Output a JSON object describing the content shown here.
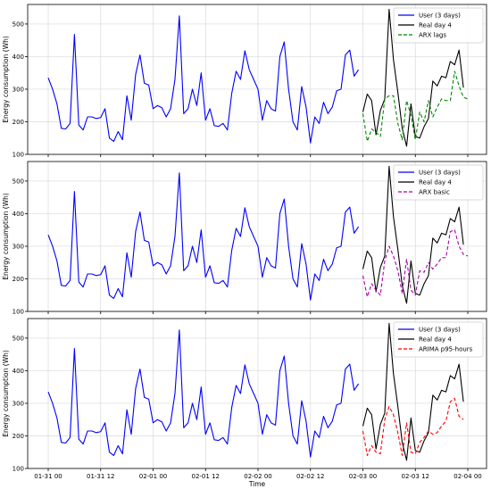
{
  "chart_data": [
    {
      "type": "line",
      "ylabel": "Energy consumption (Wh)",
      "ylim": [
        100,
        560
      ],
      "yticks": [
        100,
        200,
        300,
        400,
        500
      ],
      "xlim": [
        -6,
        75
      ],
      "grid": true,
      "legend": "top-right",
      "series": [
        {
          "name": "User (3 days)",
          "color": "#0000ff",
          "style": "solid",
          "x_start": 0,
          "values": [
            335,
            300,
            255,
            180,
            178,
            195,
            468,
            190,
            175,
            215,
            215,
            210,
            213,
            240,
            150,
            140,
            170,
            145,
            280,
            205,
            345,
            405,
            318,
            313,
            240,
            250,
            243,
            215,
            240,
            330,
            525,
            225,
            240,
            300,
            250,
            350,
            205,
            240,
            188,
            186,
            195,
            175,
            288,
            355,
            330,
            418,
            360,
            330,
            300,
            205,
            265,
            240,
            233,
            400,
            445,
            300,
            200,
            175,
            308,
            245,
            135,
            215,
            195,
            260,
            225,
            245,
            295,
            300,
            405,
            420,
            340,
            360
          ]
        },
        {
          "name": "Real day 4",
          "color": "#000000",
          "style": "solid",
          "x_start": 72,
          "values": [
            230,
            285,
            265,
            160,
            235,
            270,
            545,
            390,
            290,
            180,
            125,
            255,
            155,
            150,
            185,
            210,
            325,
            310,
            340,
            335,
            385,
            375,
            420,
            305
          ]
        },
        {
          "name": "ARX lags",
          "color": "#008800",
          "style": "dashed",
          "x_start": 72,
          "values": [
            225,
            140,
            178,
            168,
            155,
            270,
            280,
            280,
            195,
            145,
            265,
            220,
            145,
            230,
            200,
            265,
            215,
            245,
            270,
            265,
            265,
            355,
            310,
            275,
            270
          ]
        }
      ],
      "tick_labels": []
    },
    {
      "type": "line",
      "ylabel": "Energy consumption (Wh)",
      "ylim": [
        100,
        560
      ],
      "yticks": [
        100,
        200,
        300,
        400,
        500
      ],
      "xlim": [
        -6,
        75
      ],
      "grid": true,
      "legend": "top-right",
      "series": [
        {
          "name": "User (3 days)",
          "color": "#0000ff",
          "style": "solid",
          "x_start": 0,
          "values": [
            335,
            300,
            255,
            180,
            178,
            195,
            468,
            190,
            175,
            215,
            215,
            210,
            213,
            240,
            150,
            140,
            170,
            145,
            280,
            205,
            345,
            405,
            318,
            313,
            240,
            250,
            243,
            215,
            240,
            330,
            525,
            225,
            240,
            300,
            250,
            350,
            205,
            240,
            188,
            186,
            195,
            175,
            288,
            355,
            330,
            418,
            360,
            330,
            300,
            205,
            265,
            240,
            233,
            400,
            445,
            300,
            200,
            175,
            308,
            245,
            135,
            215,
            195,
            260,
            225,
            245,
            295,
            300,
            405,
            420,
            340,
            360
          ]
        },
        {
          "name": "Real day 4",
          "color": "#000000",
          "style": "solid",
          "x_start": 72,
          "values": [
            230,
            285,
            265,
            160,
            235,
            270,
            545,
            390,
            290,
            180,
            125,
            255,
            155,
            150,
            185,
            210,
            325,
            310,
            340,
            335,
            385,
            375,
            420,
            305
          ]
        },
        {
          "name": "ARX basic",
          "color": "#aa00aa",
          "style": "dashed",
          "x_start": 72,
          "values": [
            210,
            145,
            185,
            165,
            150,
            255,
            300,
            270,
            225,
            155,
            260,
            165,
            150,
            225,
            220,
            250,
            230,
            245,
            265,
            265,
            345,
            350,
            300,
            275,
            270
          ]
        }
      ],
      "tick_labels": []
    },
    {
      "type": "line",
      "ylabel": "Energy consumption (Wh)",
      "xlabel": "Time",
      "ylim": [
        100,
        560
      ],
      "yticks": [
        100,
        200,
        300,
        400,
        500
      ],
      "xlim": [
        -6,
        75
      ],
      "grid": true,
      "legend": "top-right",
      "series": [
        {
          "name": "User (3 days)",
          "color": "#0000ff",
          "style": "solid",
          "x_start": 0,
          "values": [
            335,
            300,
            255,
            180,
            178,
            195,
            468,
            190,
            175,
            215,
            215,
            210,
            213,
            240,
            150,
            140,
            170,
            145,
            280,
            205,
            345,
            405,
            318,
            313,
            240,
            250,
            243,
            215,
            240,
            330,
            525,
            225,
            240,
            300,
            250,
            350,
            205,
            240,
            188,
            186,
            195,
            175,
            288,
            355,
            330,
            418,
            360,
            330,
            300,
            205,
            265,
            240,
            233,
            400,
            445,
            300,
            200,
            175,
            308,
            245,
            135,
            215,
            195,
            260,
            225,
            245,
            295,
            300,
            405,
            420,
            340,
            360
          ]
        },
        {
          "name": "Real day 4",
          "color": "#000000",
          "style": "solid",
          "x_start": 72,
          "values": [
            230,
            285,
            265,
            160,
            235,
            270,
            545,
            390,
            290,
            180,
            125,
            255,
            155,
            150,
            185,
            210,
            325,
            310,
            340,
            335,
            385,
            375,
            420,
            305
          ]
        },
        {
          "name": "ARIMA p95-hours",
          "color": "#ff0000",
          "style": "dashed",
          "x_start": 72,
          "values": [
            215,
            140,
            170,
            150,
            145,
            250,
            290,
            265,
            210,
            140,
            240,
            150,
            145,
            180,
            195,
            215,
            205,
            210,
            230,
            245,
            305,
            315,
            260,
            250
          ]
        }
      ],
      "tick_labels": [
        {
          "x": 0,
          "label": "01-31 00"
        },
        {
          "x": 12,
          "label": "01-31 12"
        },
        {
          "x": 24,
          "label": "02-01 00"
        },
        {
          "x": 36,
          "label": "02-01 12"
        },
        {
          "x": 48,
          "label": "02-02 00"
        },
        {
          "x": 60,
          "label": "02-02 12"
        },
        {
          "x": 72,
          "label": "02-03 00"
        },
        {
          "x": 84,
          "label": "02-03 12"
        },
        {
          "x": 96,
          "label": "02-04 00"
        }
      ]
    }
  ]
}
